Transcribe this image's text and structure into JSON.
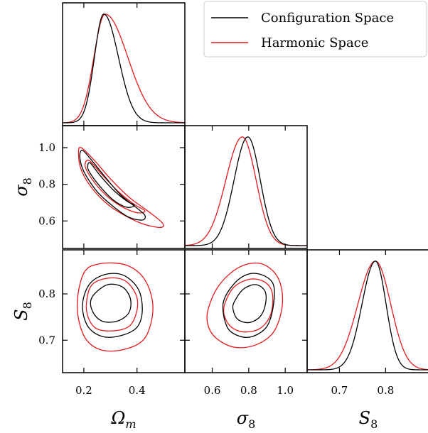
{
  "chart_data": {
    "type": "corner",
    "parameters": [
      {
        "name": "Omega_m",
        "label": "Ω",
        "label_sub": "m",
        "range": [
          0.12,
          0.58
        ],
        "ticks": [
          0.2,
          0.4
        ],
        "tick_labels": [
          "0.2",
          "0.4"
        ]
      },
      {
        "name": "sigma_8",
        "label": "σ",
        "label_sub": "8",
        "range": [
          0.45,
          1.12
        ],
        "ticks": [
          0.6,
          0.8,
          1.0
        ],
        "tick_labels": [
          "0.6",
          "0.8",
          "1.0"
        ]
      },
      {
        "name": "S_8",
        "label": "S",
        "label_sub": "8",
        "range": [
          0.63,
          0.895
        ],
        "ticks": [
          0.7,
          0.8
        ],
        "tick_labels": [
          "0.7",
          "0.8"
        ]
      }
    ],
    "legend": {
      "placement": "top-right",
      "entries": [
        {
          "label": "Configuration Space",
          "color": "#000000"
        },
        {
          "label": "Harmonic Space",
          "color": "#e41a1c"
        }
      ]
    },
    "series": [
      {
        "name": "Configuration Space",
        "color": "#000000",
        "marginals": [
          {
            "mode": 0.275,
            "sigma_left": 0.035,
            "sigma_right": 0.055
          },
          {
            "mode": 0.795,
            "sigma_left": 0.075,
            "sigma_right": 0.068
          },
          {
            "mode": 0.778,
            "sigma_left": 0.029,
            "sigma_right": 0.023
          }
        ],
        "contours": {
          "0-1": [
            [
              [
                0.195,
                0.985
              ],
              [
                0.23,
                0.93
              ],
              [
                0.28,
                0.84
              ],
              [
                0.34,
                0.74
              ],
              [
                0.4,
                0.67
              ],
              [
                0.43,
                0.63
              ],
              [
                0.42,
                0.605
              ],
              [
                0.37,
                0.62
              ],
              [
                0.31,
                0.68
              ],
              [
                0.25,
                0.76
              ],
              [
                0.2,
                0.87
              ],
              [
                0.185,
                0.95
              ]
            ],
            [
              [
                0.225,
                0.915
              ],
              [
                0.26,
                0.85
              ],
              [
                0.31,
                0.77
              ],
              [
                0.36,
                0.71
              ],
              [
                0.39,
                0.685
              ],
              [
                0.36,
                0.675
              ],
              [
                0.31,
                0.715
              ],
              [
                0.26,
                0.79
              ],
              [
                0.22,
                0.87
              ],
              [
                0.215,
                0.905
              ]
            ]
          ],
          "0-2": [
            [
              [
                0.22,
                0.82
              ],
              [
                0.28,
                0.842
              ],
              [
                0.35,
                0.84
              ],
              [
                0.405,
                0.81
              ],
              [
                0.42,
                0.765
              ],
              [
                0.4,
                0.728
              ],
              [
                0.34,
                0.71
              ],
              [
                0.27,
                0.708
              ],
              [
                0.215,
                0.73
              ],
              [
                0.195,
                0.775
              ]
            ],
            [
              [
                0.24,
                0.8
              ],
              [
                0.29,
                0.82
              ],
              [
                0.345,
                0.815
              ],
              [
                0.375,
                0.79
              ],
              [
                0.37,
                0.76
              ],
              [
                0.33,
                0.742
              ],
              [
                0.275,
                0.74
              ],
              [
                0.24,
                0.755
              ],
              [
                0.225,
                0.78
              ]
            ]
          ],
          "1-2": [
            [
              [
                0.66,
                0.78
              ],
              [
                0.72,
                0.822
              ],
              [
                0.8,
                0.843
              ],
              [
                0.88,
                0.84
              ],
              [
                0.935,
                0.82
              ],
              [
                0.935,
                0.775
              ],
              [
                0.9,
                0.73
              ],
              [
                0.82,
                0.708
              ],
              [
                0.74,
                0.71
              ],
              [
                0.68,
                0.73
              ]
            ],
            [
              [
                0.72,
                0.782
              ],
              [
                0.77,
                0.81
              ],
              [
                0.84,
                0.82
              ],
              [
                0.89,
                0.805
              ],
              [
                0.89,
                0.775
              ],
              [
                0.86,
                0.75
              ],
              [
                0.8,
                0.738
              ],
              [
                0.74,
                0.745
              ],
              [
                0.715,
                0.765
              ]
            ]
          ]
        }
      },
      {
        "name": "Harmonic Space",
        "color": "#e41a1c",
        "marginals": [
          {
            "mode": 0.28,
            "sigma_left": 0.042,
            "sigma_right": 0.085
          },
          {
            "mode": 0.765,
            "sigma_left": 0.09,
            "sigma_right": 0.075
          },
          {
            "mode": 0.778,
            "sigma_left": 0.038,
            "sigma_right": 0.033
          }
        ],
        "contours": {
          "0-1": [
            [
              [
                0.19,
                1.0
              ],
              [
                0.24,
                0.93
              ],
              [
                0.3,
                0.83
              ],
              [
                0.37,
                0.73
              ],
              [
                0.44,
                0.655
              ],
              [
                0.495,
                0.59
              ],
              [
                0.49,
                0.565
              ],
              [
                0.43,
                0.58
              ],
              [
                0.36,
                0.625
              ],
              [
                0.29,
                0.69
              ],
              [
                0.23,
                0.78
              ],
              [
                0.19,
                0.88
              ],
              [
                0.18,
                0.97
              ]
            ],
            [
              [
                0.22,
                0.93
              ],
              [
                0.27,
                0.85
              ],
              [
                0.33,
                0.76
              ],
              [
                0.39,
                0.69
              ],
              [
                0.43,
                0.655
              ],
              [
                0.4,
                0.645
              ],
              [
                0.34,
                0.68
              ],
              [
                0.28,
                0.745
              ],
              [
                0.23,
                0.83
              ],
              [
                0.205,
                0.9
              ]
            ]
          ],
          "0-2": [
            [
              [
                0.2,
                0.845
              ],
              [
                0.26,
                0.865
              ],
              [
                0.36,
                0.862
              ],
              [
                0.43,
                0.83
              ],
              [
                0.46,
                0.77
              ],
              [
                0.43,
                0.705
              ],
              [
                0.35,
                0.68
              ],
              [
                0.26,
                0.68
              ],
              [
                0.2,
                0.71
              ],
              [
                0.175,
                0.775
              ]
            ],
            [
              [
                0.225,
                0.815
              ],
              [
                0.28,
                0.833
              ],
              [
                0.35,
                0.83
              ],
              [
                0.395,
                0.8
              ],
              [
                0.4,
                0.765
              ],
              [
                0.37,
                0.73
              ],
              [
                0.3,
                0.72
              ],
              [
                0.24,
                0.728
              ],
              [
                0.21,
                0.765
              ]
            ]
          ],
          "1-2": [
            [
              [
                0.58,
                0.77
              ],
              [
                0.64,
                0.82
              ],
              [
                0.75,
                0.858
              ],
              [
                0.87,
                0.865
              ],
              [
                0.96,
                0.835
              ],
              [
                0.985,
                0.78
              ],
              [
                0.94,
                0.72
              ],
              [
                0.84,
                0.69
              ],
              [
                0.72,
                0.685
              ],
              [
                0.62,
                0.705
              ],
              [
                0.575,
                0.735
              ]
            ],
            [
              [
                0.67,
                0.78
              ],
              [
                0.72,
                0.815
              ],
              [
                0.81,
                0.832
              ],
              [
                0.89,
                0.825
              ],
              [
                0.93,
                0.8
              ],
              [
                0.92,
                0.755
              ],
              [
                0.86,
                0.725
              ],
              [
                0.77,
                0.718
              ],
              [
                0.7,
                0.73
              ],
              [
                0.665,
                0.755
              ]
            ]
          ]
        }
      }
    ]
  }
}
